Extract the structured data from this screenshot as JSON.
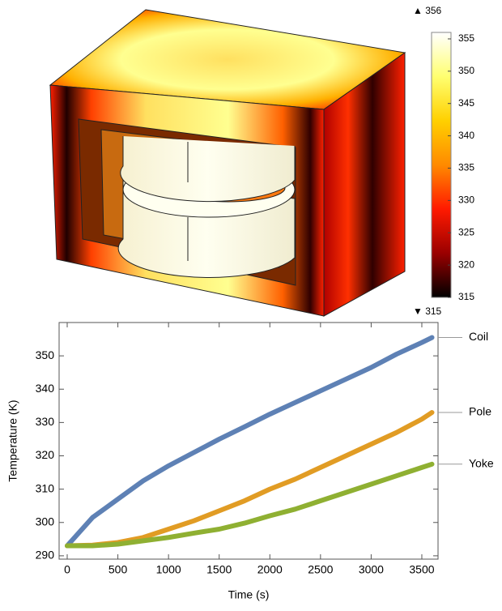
{
  "chart_data": [
    {
      "type": "colorbar",
      "ylim": [
        315,
        356
      ],
      "yticks": [
        315,
        320,
        325,
        330,
        335,
        340,
        345,
        350,
        355
      ],
      "range_labels": [
        "▼ 315",
        "▲ 356"
      ],
      "colors": [
        "#000000",
        "#9a0000",
        "#ff1a00",
        "#ff8a00",
        "#ffd000",
        "#ffff70",
        "#ffffff"
      ]
    },
    {
      "type": "line",
      "x_label": "Time (s)",
      "y_label": "Temperature (K)",
      "xlim": [
        -80,
        3660
      ],
      "ylim": [
        289,
        360
      ],
      "xticks": [
        0,
        500,
        1000,
        1500,
        2000,
        2500,
        3000,
        3500
      ],
      "yticks": [
        290,
        300,
        310,
        320,
        330,
        340,
        350
      ],
      "x": [
        0,
        250,
        500,
        750,
        1000,
        1250,
        1500,
        1750,
        2000,
        2250,
        2500,
        2750,
        3000,
        3250,
        3500,
        3600
      ],
      "series": [
        {
          "name": "Coil",
          "color": "#5e81b5",
          "values": [
            293,
            301.5,
            307,
            312.5,
            317,
            321,
            325,
            328.7,
            332.5,
            336,
            339.5,
            343,
            346.5,
            350.5,
            354,
            355.5
          ]
        },
        {
          "name": "Pole",
          "color": "#e19c24",
          "values": [
            293,
            293.2,
            294,
            295.5,
            298,
            300.5,
            303.5,
            306.5,
            310,
            313,
            316.5,
            320,
            323.5,
            327,
            331,
            333
          ]
        },
        {
          "name": "Yoke",
          "color": "#8fb032",
          "values": [
            293,
            293,
            293.5,
            294.5,
            295.5,
            296.8,
            298,
            299.8,
            302,
            304,
            306.5,
            309,
            311.5,
            314,
            316.5,
            317.5
          ]
        }
      ]
    }
  ]
}
